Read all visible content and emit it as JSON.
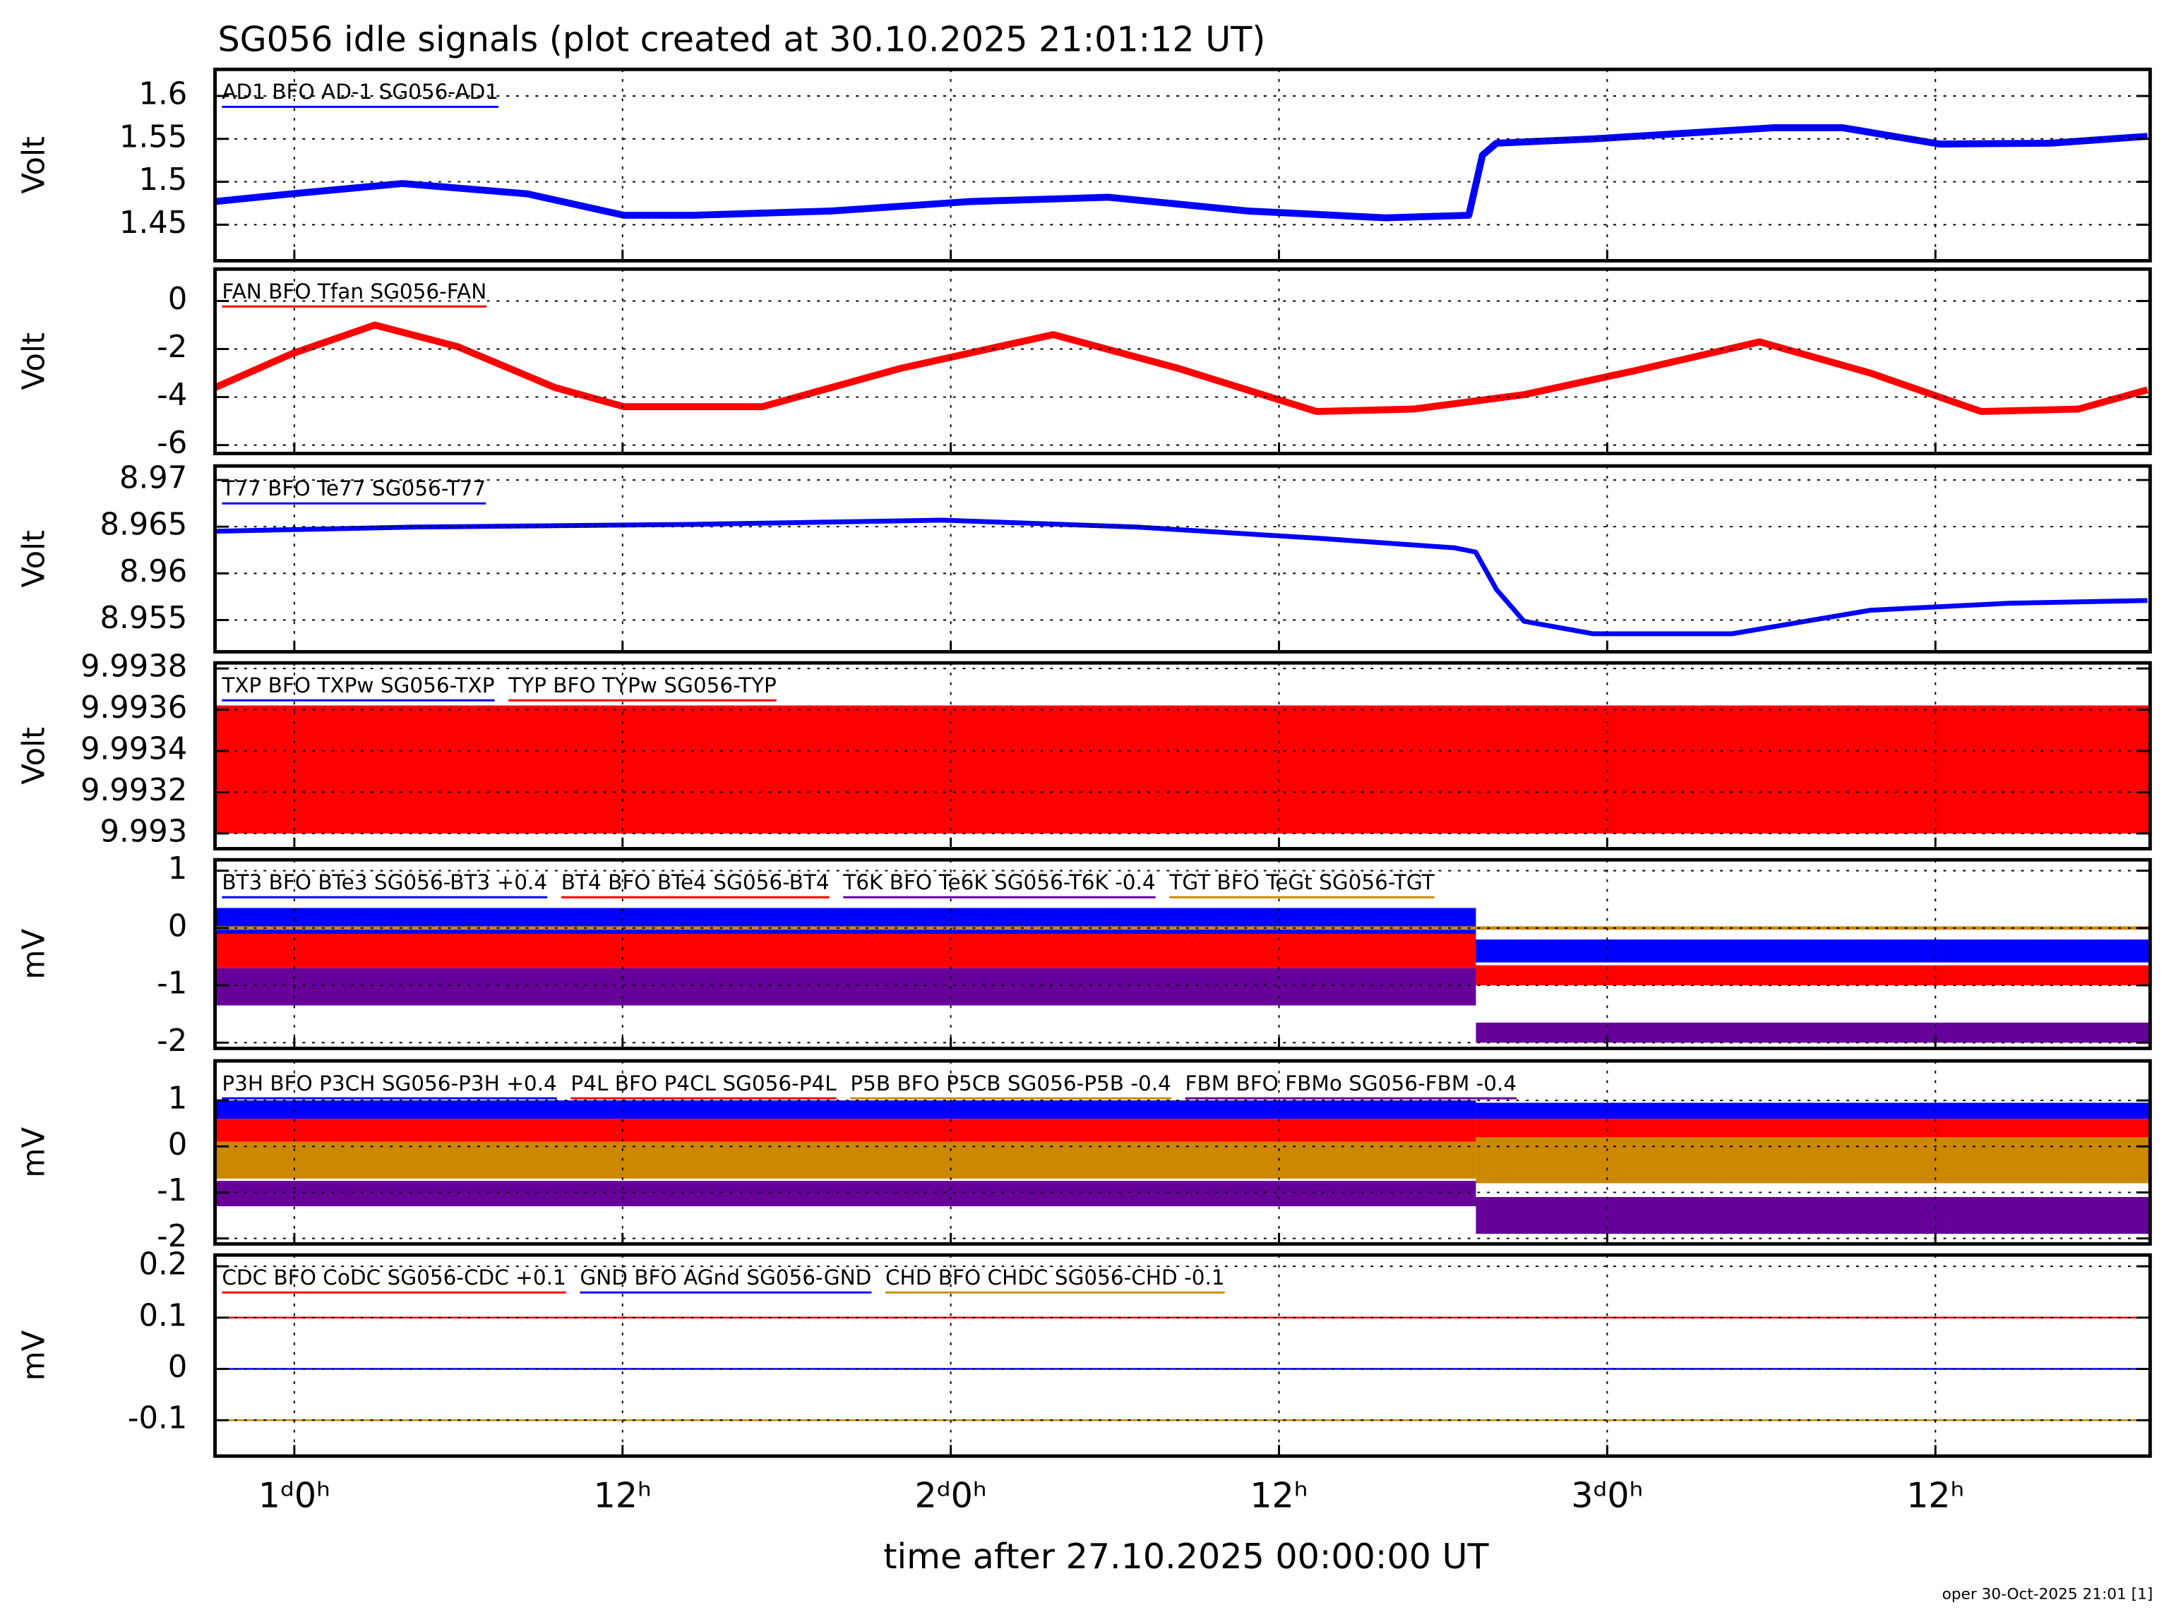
{
  "title": "SG056 idle signals (plot created at 30.10.2025 21:01:12 UT)",
  "xaxis": {
    "label": "time after 27.10.2025 00:00:00 UT",
    "xlim": [
      21.1,
      91.85
    ],
    "xticks": [
      {
        "value": 24,
        "label": "1ᵈ0ʰ"
      },
      {
        "value": 36,
        "label": "12ʰ"
      },
      {
        "value": 48,
        "label": "2ᵈ0ʰ"
      },
      {
        "value": 60,
        "label": "12ʰ"
      },
      {
        "value": 72,
        "label": "3ᵈ0ʰ"
      },
      {
        "value": 84,
        "label": "12ʰ"
      }
    ]
  },
  "footer": "oper 30-Oct-2025 21:01 [1]",
  "chart_data": [
    {
      "type": "line",
      "ylabel": "Volt",
      "ylim": [
        1.408,
        1.631
      ],
      "yticks": [
        1.45,
        1.5,
        1.55,
        1.6
      ],
      "grid": true,
      "x": [
        21.11,
        23.9,
        27.95,
        32.51,
        36.05,
        38.58,
        43.65,
        48.71,
        53.77,
        58.84,
        63.9,
        66.94,
        67.44,
        67.95,
        71.49,
        78.08,
        80.61,
        84.15,
        88.2,
        91.75
      ],
      "series": [
        {
          "name": "AD1 BFO AD-1 SG056-AD1",
          "color": "#0000ff",
          "values": [
            1.477,
            1.486,
            1.498,
            1.486,
            1.461,
            1.461,
            1.466,
            1.477,
            1.482,
            1.466,
            1.458,
            1.461,
            1.531,
            1.545,
            1.55,
            1.563,
            1.563,
            1.544,
            1.545,
            1.553
          ]
        }
      ]
    },
    {
      "type": "line",
      "ylabel": "Volt",
      "ylim": [
        -6.35,
        1.33
      ],
      "yticks": [
        0,
        -2,
        -4,
        -6
      ],
      "grid": true,
      "x": [
        21.11,
        23.9,
        26.94,
        29.97,
        33.52,
        36.05,
        41.11,
        46.18,
        51.75,
        56.3,
        61.37,
        64.91,
        68.96,
        73.01,
        77.57,
        81.62,
        85.67,
        89.22,
        91.75
      ],
      "series": [
        {
          "name": "FAN BFO Tfan SG056-FAN",
          "color": "#ff0000",
          "values": [
            -3.6,
            -2.2,
            -1.0,
            -1.9,
            -3.6,
            -4.4,
            -4.4,
            -2.8,
            -1.4,
            -2.8,
            -4.6,
            -4.5,
            -3.9,
            -2.9,
            -1.7,
            -3.0,
            -4.6,
            -4.5,
            -3.7
          ]
        }
      ]
    },
    {
      "type": "line",
      "ylabel": "Volt",
      "ylim": [
        8.9516,
        8.9715
      ],
      "yticks": [
        8.955,
        8.96,
        8.965,
        8.97
      ],
      "grid": true,
      "x": [
        21.11,
        28.46,
        38.58,
        47.7,
        54.78,
        61.37,
        66.43,
        67.19,
        67.95,
        68.96,
        71.49,
        76.56,
        81.62,
        86.68,
        91.75
      ],
      "series": [
        {
          "name": "T77 BFO Te77 SG056-T77",
          "color": "#0000ff",
          "values": [
            8.96451,
            8.96496,
            8.96525,
            8.9657,
            8.96496,
            8.96377,
            8.96273,
            8.96228,
            8.95828,
            8.95487,
            8.95353,
            8.95353,
            8.95605,
            8.9568,
            8.95709
          ]
        }
      ]
    },
    {
      "type": "band",
      "ylabel": "Volt",
      "ylim": [
        9.992926,
        9.993827
      ],
      "yticks": [
        9.993,
        9.9932,
        9.9934,
        9.9936,
        9.9938
      ],
      "grid": true,
      "x": [
        21.1,
        67.2,
        91.85
      ],
      "series": [
        {
          "name": "TXP BFO TXPw SG056-TXP",
          "color": "#0000ff",
          "low": [
            9.993,
            9.993
          ],
          "high": [
            9.99362,
            9.99362
          ]
        },
        {
          "name": "TYP BFO TYPw SG056-TYP",
          "color": "#ff0000",
          "low": [
            9.993,
            9.993
          ],
          "high": [
            9.99362,
            9.99362
          ]
        }
      ]
    },
    {
      "type": "band",
      "ylabel": "mV",
      "ylim": [
        -2.1,
        1.19
      ],
      "yticks": [
        -2,
        -1,
        0,
        1
      ],
      "grid": true,
      "x": [
        21.1,
        67.2,
        91.85
      ],
      "series": [
        {
          "name": "BT3 BFO BTe3 SG056-BT3 +0.4",
          "color": "#0000ff",
          "low": [
            -0.2,
            -0.6
          ],
          "high": [
            0.35,
            -0.2
          ]
        },
        {
          "name": "BT4 BFO BTe4 SG056-BT4",
          "color": "#ff0000",
          "low": [
            -0.7,
            -1.0
          ],
          "high": [
            -0.1,
            -0.65
          ]
        },
        {
          "name": "T6K BFO Te6K SG056-T6K -0.4",
          "color": "#660099",
          "low": [
            -1.35,
            -2.0
          ],
          "high": [
            -0.7,
            -1.65
          ]
        },
        {
          "name": "TGT BFO TeGt SG056-TGT",
          "color": "#cc8800",
          "low": [
            -0.03,
            -0.03
          ],
          "high": [
            0.03,
            0.03
          ]
        }
      ]
    },
    {
      "type": "band",
      "ylabel": "mV",
      "ylim": [
        -2.12,
        1.86
      ],
      "yticks": [
        -2,
        -1,
        0,
        1
      ],
      "grid": true,
      "x": [
        21.1,
        67.2,
        91.85
      ],
      "series": [
        {
          "name": "P3H BFO P3CH SG056-P3H +0.4",
          "color": "#0000ff",
          "low": [
            0.6,
            0.6
          ],
          "high": [
            1.0,
            0.95
          ]
        },
        {
          "name": "P4L BFO P4CL SG056-P4L",
          "color": "#ff0000",
          "low": [
            0.1,
            0.1
          ],
          "high": [
            0.6,
            0.6
          ]
        },
        {
          "name": "P5B BFO P5CB SG056-P5B -0.4",
          "color": "#cc8800",
          "low": [
            -0.7,
            -0.8
          ],
          "high": [
            0.1,
            0.2
          ]
        },
        {
          "name": "FBM BFO FBMo SG056-FBM -0.4",
          "color": "#660099",
          "low": [
            -1.3,
            -1.9
          ],
          "high": [
            -0.75,
            -1.1
          ]
        }
      ]
    },
    {
      "type": "line",
      "ylabel": "mV",
      "ylim": [
        -0.17,
        0.222
      ],
      "yticks": [
        -0.1,
        0,
        0.1,
        0.2
      ],
      "grid": true,
      "x": [
        21.1,
        91.85
      ],
      "series": [
        {
          "name": "CDC BFO CoDC SG056-CDC +0.1",
          "color": "#ff0000",
          "values": [
            0.1,
            0.1
          ]
        },
        {
          "name": "GND BFO AGnd SG056-GND",
          "color": "#0000ff",
          "values": [
            0,
            0
          ]
        },
        {
          "name": "CHD BFO CHDC SG056-CHD -0.1",
          "color": "#cc8800",
          "values": [
            -0.1,
            -0.1
          ]
        }
      ]
    }
  ]
}
